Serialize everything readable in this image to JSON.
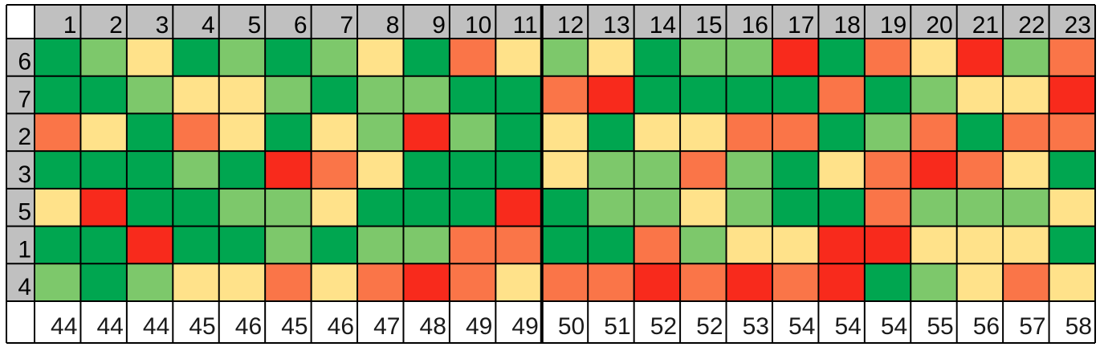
{
  "colors": {
    "dark_green": "#00a650",
    "light_green": "#7dc86b",
    "yellow": "#ffe28a",
    "orange": "#fa7548",
    "red": "#f82a1c",
    "header_gray": "#c0c0c0",
    "grid_line": "#000000",
    "background": "#ffffff"
  },
  "chart_data": {
    "type": "heatmap",
    "columns": [
      "1",
      "2",
      "3",
      "4",
      "5",
      "6",
      "7",
      "8",
      "9",
      "10",
      "11",
      "12",
      "13",
      "14",
      "15",
      "16",
      "17",
      "18",
      "19",
      "20",
      "21",
      "22",
      "23"
    ],
    "rows": [
      "6",
      "7",
      "2",
      "3",
      "5",
      "1",
      "4"
    ],
    "footer_values": [
      "44",
      "44",
      "44",
      "45",
      "46",
      "45",
      "46",
      "47",
      "48",
      "49",
      "49",
      "50",
      "51",
      "52",
      "52",
      "53",
      "54",
      "54",
      "54",
      "55",
      "56",
      "57",
      "58"
    ],
    "color_scale": [
      "dark_green",
      "light_green",
      "yellow",
      "orange",
      "red"
    ],
    "cells": [
      [
        "dark_green",
        "light_green",
        "yellow",
        "dark_green",
        "light_green",
        "dark_green",
        "light_green",
        "yellow",
        "dark_green",
        "orange",
        "yellow",
        "light_green",
        "yellow",
        "dark_green",
        "light_green",
        "light_green",
        "red",
        "dark_green",
        "orange",
        "yellow",
        "red",
        "light_green",
        "orange"
      ],
      [
        "dark_green",
        "dark_green",
        "light_green",
        "yellow",
        "yellow",
        "light_green",
        "dark_green",
        "light_green",
        "light_green",
        "dark_green",
        "dark_green",
        "orange",
        "red",
        "dark_green",
        "dark_green",
        "dark_green",
        "dark_green",
        "orange",
        "dark_green",
        "light_green",
        "yellow",
        "yellow",
        "red"
      ],
      [
        "orange",
        "yellow",
        "dark_green",
        "orange",
        "yellow",
        "dark_green",
        "yellow",
        "light_green",
        "red",
        "light_green",
        "dark_green",
        "yellow",
        "dark_green",
        "yellow",
        "yellow",
        "orange",
        "orange",
        "dark_green",
        "light_green",
        "orange",
        "dark_green",
        "orange",
        "orange"
      ],
      [
        "dark_green",
        "dark_green",
        "dark_green",
        "light_green",
        "dark_green",
        "red",
        "orange",
        "yellow",
        "dark_green",
        "dark_green",
        "dark_green",
        "yellow",
        "light_green",
        "light_green",
        "orange",
        "light_green",
        "dark_green",
        "yellow",
        "orange",
        "red",
        "orange",
        "yellow",
        "dark_green"
      ],
      [
        "yellow",
        "red",
        "dark_green",
        "dark_green",
        "light_green",
        "light_green",
        "yellow",
        "dark_green",
        "dark_green",
        "dark_green",
        "red",
        "dark_green",
        "light_green",
        "light_green",
        "yellow",
        "light_green",
        "dark_green",
        "dark_green",
        "orange",
        "light_green",
        "light_green",
        "light_green",
        "yellow"
      ],
      [
        "dark_green",
        "dark_green",
        "red",
        "dark_green",
        "dark_green",
        "light_green",
        "dark_green",
        "light_green",
        "light_green",
        "orange",
        "orange",
        "dark_green",
        "dark_green",
        "orange",
        "light_green",
        "yellow",
        "yellow",
        "red",
        "red",
        "yellow",
        "yellow",
        "yellow",
        "dark_green"
      ],
      [
        "light_green",
        "dark_green",
        "light_green",
        "yellow",
        "yellow",
        "orange",
        "yellow",
        "orange",
        "red",
        "orange",
        "yellow",
        "orange",
        "orange",
        "red",
        "orange",
        "red",
        "orange",
        "red",
        "dark_green",
        "light_green",
        "yellow",
        "orange",
        "yellow"
      ]
    ],
    "thick_divider_after_column": "11"
  }
}
